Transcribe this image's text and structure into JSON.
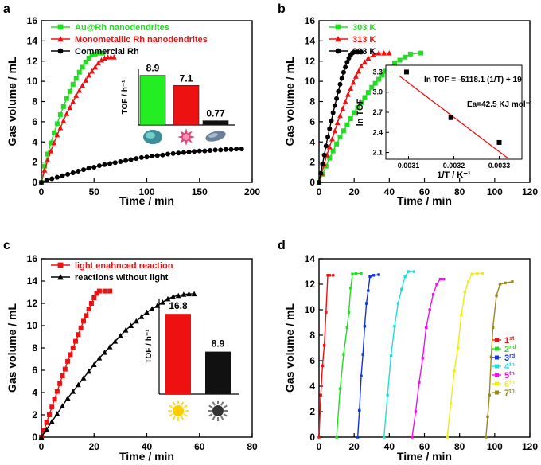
{
  "panels": [
    {
      "id": "a",
      "letter": "a",
      "chart_data": {
        "type": "line",
        "xlabel": "Time / min",
        "ylabel": "Gas volume / mL",
        "xlim": [
          0,
          200
        ],
        "ylim": [
          0,
          16
        ],
        "xticks": [
          0,
          50,
          100,
          150,
          200
        ],
        "yticks": [
          0,
          2,
          4,
          6,
          8,
          10,
          12,
          14,
          16
        ],
        "legend": "top-left",
        "series": [
          {
            "name": "Au@Rh nanodendrites",
            "color": "#22dd22",
            "marker": "square",
            "x": [
              0,
              3,
              6,
              9,
              12,
              15,
              18,
              21,
              24,
              27,
              30,
              33,
              36,
              39,
              42,
              45,
              48,
              51,
              54,
              58
            ],
            "y": [
              0,
              1.6,
              2.8,
              3.9,
              4.9,
              5.8,
              6.7,
              7.5,
              8.3,
              9.0,
              9.7,
              10.3,
              10.9,
              11.4,
              11.9,
              12.3,
              12.6,
              12.7,
              12.8,
              12.8
            ]
          },
          {
            "name": "Monometallic Rh nanodendrites",
            "color": "#ee1111",
            "marker": "triangle",
            "x": [
              0,
              3,
              6,
              9,
              12,
              15,
              18,
              21,
              24,
              27,
              30,
              33,
              36,
              39,
              42,
              45,
              48,
              51,
              54,
              57,
              60,
              63,
              66,
              69
            ],
            "y": [
              0,
              1.2,
              2.2,
              3.1,
              3.9,
              4.7,
              5.4,
              6.1,
              6.8,
              7.4,
              8.0,
              8.6,
              9.1,
              9.6,
              10.1,
              10.6,
              11.0,
              11.4,
              11.8,
              12.1,
              12.3,
              12.4,
              12.4,
              12.4
            ]
          },
          {
            "name": "Commercial Rh",
            "color": "#000000",
            "marker": "circle",
            "x": [
              0,
              5,
              10,
              15,
              20,
              25,
              30,
              35,
              40,
              45,
              50,
              55,
              60,
              65,
              70,
              75,
              80,
              85,
              90,
              95,
              100,
              105,
              110,
              115,
              120,
              125,
              130,
              135,
              140,
              145,
              150,
              155,
              160,
              165,
              170,
              175,
              180,
              185,
              190
            ],
            "y": [
              0,
              0.2,
              0.35,
              0.5,
              0.65,
              0.8,
              0.95,
              1.1,
              1.25,
              1.4,
              1.5,
              1.65,
              1.75,
              1.85,
              1.95,
              2.05,
              2.15,
              2.25,
              2.35,
              2.45,
              2.5,
              2.6,
              2.65,
              2.7,
              2.8,
              2.85,
              2.9,
              2.95,
              3.0,
              3.05,
              3.1,
              3.1,
              3.15,
              3.2,
              3.2,
              3.25,
              3.25,
              3.3,
              3.3
            ]
          }
        ]
      },
      "inset": {
        "type": "bar",
        "ylabel": "TOF / h⁻¹",
        "ylim": [
          0,
          10
        ],
        "values": [
          8.9,
          7.1,
          0.77
        ],
        "labels": [
          "8.9",
          "7.1",
          "0.77"
        ],
        "colors": [
          "#22ee22",
          "#ee1111",
          "#111111"
        ],
        "icons": [
          "au-rh-particle-icon",
          "rh-particle-icon",
          "commercial-rh-particle-icon"
        ]
      }
    },
    {
      "id": "b",
      "letter": "b",
      "chart_data": {
        "type": "line",
        "xlabel": "Time / min",
        "ylabel": "Gas volume / mL",
        "xlim": [
          0,
          120
        ],
        "ylim": [
          0,
          16
        ],
        "xticks": [
          0,
          20,
          40,
          60,
          80,
          100,
          120
        ],
        "yticks": [
          0,
          2,
          4,
          6,
          8,
          10,
          12,
          14,
          16
        ],
        "legend": "top-left",
        "series": [
          {
            "name": "303 K",
            "color": "#22dd22",
            "marker": "square",
            "x": [
              0,
              2,
              4,
              6,
              8,
              10,
              12,
              14,
              16,
              18,
              20,
              22,
              24,
              26,
              28,
              30,
              32,
              34,
              36,
              38,
              40,
              43,
              46,
              49,
              52,
              58
            ],
            "y": [
              0,
              0.8,
              1.6,
              2.4,
              3.1,
              3.8,
              4.5,
              5.1,
              5.7,
              6.3,
              6.9,
              7.4,
              7.9,
              8.4,
              8.9,
              9.4,
              9.8,
              10.2,
              10.6,
              11.0,
              11.4,
              11.8,
              12.1,
              12.4,
              12.7,
              12.8
            ]
          },
          {
            "name": "313 K",
            "color": "#ee1111",
            "marker": "triangle",
            "x": [
              0,
              1.5,
              3,
              4.5,
              6,
              7.5,
              9,
              10.5,
              12,
              13.5,
              15,
              16.5,
              18,
              19.5,
              21,
              22.5,
              24,
              26,
              28,
              31,
              34,
              37,
              40
            ],
            "y": [
              0,
              0.9,
              1.8,
              2.7,
              3.5,
              4.3,
              5.1,
              5.9,
              6.6,
              7.3,
              8.0,
              8.7,
              9.3,
              9.9,
              10.5,
              11.0,
              11.5,
              11.9,
              12.3,
              12.6,
              12.8,
              12.8,
              12.8
            ]
          },
          {
            "name": "323 K",
            "color": "#000000",
            "marker": "circle",
            "x": [
              0,
              1,
              2,
              3,
              4,
              5,
              6,
              7,
              8,
              9,
              10,
              11,
              12,
              13,
              14,
              15,
              16,
              17,
              18,
              19,
              20,
              22,
              24
            ],
            "y": [
              0,
              0.9,
              1.8,
              2.7,
              3.6,
              4.5,
              5.3,
              6.1,
              6.9,
              7.6,
              8.3,
              9.0,
              9.7,
              10.3,
              10.9,
              11.4,
              11.9,
              12.3,
              12.6,
              12.8,
              12.9,
              12.9,
              12.9
            ]
          }
        ]
      },
      "inset": {
        "type": "scatter",
        "xlabel": "1/T / K⁻¹",
        "ylabel": "ln TOF",
        "xlim": [
          0.00305,
          0.00335
        ],
        "ylim": [
          2.0,
          3.4
        ],
        "xticks": [
          0.0031,
          0.0032,
          0.0033
        ],
        "xticklabels": [
          "0.0031",
          "0.0032",
          "0.0033"
        ],
        "yticks": [
          2.1,
          2.4,
          2.7,
          3.0,
          3.3
        ],
        "yticklabels": [
          "2.1",
          "2.4",
          "2.7",
          "3.0",
          "3.3"
        ],
        "x": [
          0.0033,
          0.0031934,
          0.0030955
        ],
        "y": [
          2.25,
          2.62,
          3.3
        ],
        "fit": {
          "x": [
            0.00308,
            0.00332
          ],
          "y": [
            3.24,
            2.01
          ]
        },
        "equation": "ln TOF = -5118.1 (1/T) + 19",
        "ea": "Ea=42.5 KJ mol⁻¹"
      }
    },
    {
      "id": "c",
      "letter": "c",
      "chart_data": {
        "type": "line",
        "xlabel": "Time / min",
        "ylabel": "Gas volume / mL",
        "xlim": [
          0,
          80
        ],
        "ylim": [
          0,
          16
        ],
        "xticks": [
          0,
          20,
          40,
          60,
          80
        ],
        "yticks": [
          0,
          2,
          4,
          6,
          8,
          10,
          12,
          14,
          16
        ],
        "legend": "top-left",
        "series": [
          {
            "name": "light enahnced reaction",
            "color": "#ee1111",
            "marker": "square",
            "x": [
              0,
              1,
              2,
              3,
              4,
              5,
              6,
              7,
              8,
              9,
              10,
              11,
              12,
              13,
              14,
              15,
              16,
              17,
              18,
              19,
              20,
              21,
              22,
              24,
              26
            ],
            "y": [
              0,
              0.6,
              1.3,
              2.0,
              2.7,
              3.4,
              4.1,
              4.8,
              5.5,
              6.1,
              6.8,
              7.4,
              8.0,
              8.6,
              9.2,
              9.8,
              10.4,
              10.9,
              11.5,
              12.0,
              12.5,
              12.9,
              13.1,
              13.1,
              13.1
            ]
          },
          {
            "name": "reactions without light",
            "color": "#000000",
            "marker": "triangle",
            "x": [
              0,
              2,
              4,
              6,
              8,
              10,
              12,
              14,
              16,
              18,
              20,
              22,
              24,
              26,
              28,
              30,
              32,
              34,
              36,
              38,
              40,
              42,
              44,
              46,
              48,
              50,
              52,
              54,
              56,
              58
            ],
            "y": [
              0,
              0.7,
              1.4,
              2.1,
              2.8,
              3.5,
              4.1,
              4.7,
              5.3,
              5.9,
              6.5,
              7.1,
              7.6,
              8.1,
              8.6,
              9.1,
              9.6,
              10.0,
              10.4,
              10.8,
              11.2,
              11.5,
              11.8,
              12.1,
              12.4,
              12.6,
              12.7,
              12.8,
              12.85,
              12.85
            ]
          }
        ]
      },
      "inset": {
        "type": "bar",
        "ylabel": "TOF / h⁻¹",
        "ylim": [
          0,
          20
        ],
        "values": [
          16.8,
          8.9
        ],
        "labels": [
          "16.8",
          "8.9"
        ],
        "colors": [
          "#ee1111",
          "#111111"
        ],
        "icons": [
          "sun-light-on-icon",
          "sun-light-off-icon"
        ]
      }
    },
    {
      "id": "d",
      "letter": "d",
      "chart_data": {
        "type": "line",
        "xlabel": "Time / min",
        "ylabel": "Gas volume / mL",
        "xlim": [
          0,
          120
        ],
        "ylim": [
          0,
          14
        ],
        "xticks": [
          0,
          20,
          40,
          60,
          80,
          100,
          120
        ],
        "yticks": [
          0,
          2,
          4,
          6,
          8,
          10,
          12,
          14
        ],
        "legend": "right",
        "series": [
          {
            "name": "1st",
            "base": "1",
            "sup": "st",
            "color": "#ee1111",
            "x": [
              0,
              1,
              2,
              3,
              4,
              5,
              6,
              8
            ],
            "y": [
              0,
              3.3,
              5.6,
              7.2,
              9.8,
              12.7,
              12.7,
              12.7
            ]
          },
          {
            "name": "2nd",
            "base": "2",
            "sup": "nd",
            "color": "#22dd22",
            "x": [
              10,
              12,
              14,
              16,
              17,
              18,
              19,
              21,
              24
            ],
            "y": [
              0,
              3.8,
              6.5,
              8.6,
              9.8,
              11.7,
              12.8,
              12.85,
              12.85
            ]
          },
          {
            "name": "3rd",
            "base": "3",
            "sup": "rd",
            "color": "#1133dd",
            "x": [
              22,
              23,
              24,
              25,
              26,
              27,
              28,
              29,
              31,
              34
            ],
            "y": [
              0,
              2.1,
              4.8,
              6.5,
              8.7,
              10.5,
              11.5,
              12.6,
              12.7,
              12.75
            ]
          },
          {
            "name": "4th",
            "base": "4",
            "sup": "th",
            "color": "#22dddd",
            "x": [
              37,
              39,
              41,
              43,
              45,
              47,
              49,
              51,
              54
            ],
            "y": [
              0,
              3.3,
              6.4,
              8.7,
              10.5,
              11.6,
              12.6,
              13.0,
              13.0
            ]
          },
          {
            "name": "5th",
            "base": "5",
            "sup": "th",
            "color": "#ee11ee",
            "x": [
              53,
              55,
              57,
              59,
              61,
              63,
              65,
              67,
              69,
              71
            ],
            "y": [
              0,
              2.0,
              4.3,
              6.2,
              8.6,
              10.0,
              11.2,
              12.0,
              12.4,
              12.4
            ]
          },
          {
            "name": "6th",
            "base": "6",
            "sup": "th",
            "color": "#eeee11",
            "x": [
              73,
              75,
              77,
              79,
              81,
              83,
              85,
              87,
              90,
              93
            ],
            "y": [
              0,
              2.6,
              5.2,
              7.0,
              9.6,
              11.4,
              12.2,
              12.8,
              12.85,
              12.85
            ]
          },
          {
            "name": "7th",
            "base": "7",
            "sup": "th",
            "color": "#998822",
            "x": [
              95,
              96,
              97,
              98,
              99,
              101,
              103,
              106,
              110
            ],
            "y": [
              0,
              1.6,
              3.3,
              6.3,
              8.6,
              11.1,
              12.0,
              12.1,
              12.2
            ]
          }
        ]
      }
    }
  ]
}
